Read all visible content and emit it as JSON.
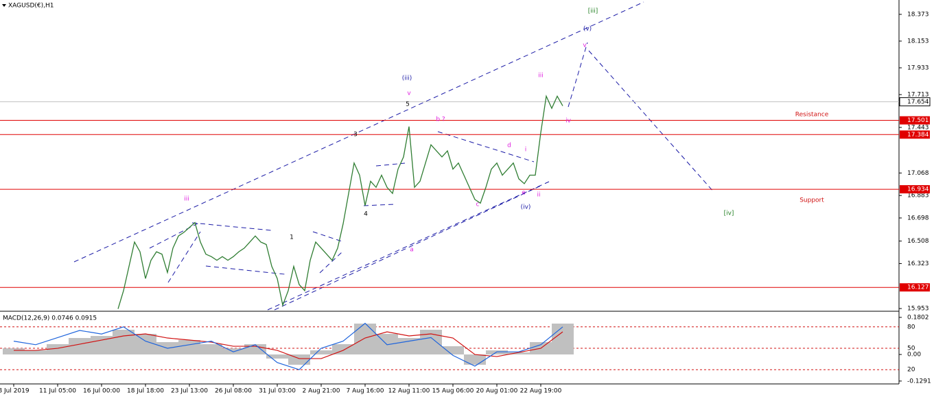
{
  "chart_data": [
    {
      "type": "line",
      "title": "XAGUSD(€),H1",
      "x": [
        19,
        20,
        21,
        22,
        23,
        24,
        25,
        26,
        27,
        28,
        29,
        30,
        31,
        32,
        33,
        34,
        35,
        36,
        37,
        38,
        39,
        40,
        41,
        42,
        43,
        44,
        45,
        46,
        47,
        48,
        49,
        50,
        51,
        52,
        53,
        54,
        55,
        56,
        57,
        58,
        59,
        60,
        61,
        62,
        63,
        64,
        65,
        66,
        67,
        68,
        69,
        70,
        71,
        72,
        73,
        74,
        75,
        76,
        77,
        78,
        79,
        80,
        81,
        82,
        83,
        84,
        85,
        86,
        87,
        88,
        89,
        90,
        91,
        92,
        93,
        94,
        95,
        96,
        97,
        98,
        99,
        100
      ],
      "series": [
        {
          "name": "XAGUSD",
          "color": "#2f7d32",
          "values": [
            15.95,
            16.1,
            16.3,
            16.5,
            16.42,
            16.2,
            16.35,
            16.42,
            16.4,
            16.25,
            16.45,
            16.55,
            16.58,
            16.62,
            16.66,
            16.5,
            16.4,
            16.38,
            16.35,
            16.38,
            16.35,
            16.38,
            16.42,
            16.45,
            16.5,
            16.55,
            16.5,
            16.48,
            16.3,
            16.2,
            15.98,
            16.1,
            16.3,
            16.15,
            16.1,
            16.35,
            16.5,
            16.45,
            16.4,
            16.35,
            16.45,
            16.65,
            16.9,
            17.15,
            17.05,
            16.8,
            17.0,
            16.95,
            17.05,
            16.95,
            16.9,
            17.1,
            17.2,
            17.45,
            16.95,
            17.0,
            17.15,
            17.3,
            17.25,
            17.2,
            17.25,
            17.1,
            17.15,
            17.05,
            16.95,
            16.85,
            16.82,
            16.95,
            17.1,
            17.15,
            17.05,
            17.1,
            17.15,
            17.02,
            16.98,
            17.05,
            17.05,
            17.4,
            17.7,
            17.6,
            17.7,
            17.62
          ]
        }
      ],
      "xlim": [
        -2.5,
        161.25
      ],
      "xticks": [
        {
          "value": 0,
          "label": "8 Jul 2019"
        },
        {
          "value": 8,
          "label": "11 Jul 05:00"
        },
        {
          "value": 16,
          "label": "16 Jul 00:00"
        },
        {
          "value": 24,
          "label": "18 Jul 18:00"
        },
        {
          "value": 32,
          "label": "23 Jul 13:00"
        },
        {
          "value": 40,
          "label": "26 Jul 08:00"
        },
        {
          "value": 48,
          "label": "31 Jul 03:00"
        },
        {
          "value": 56,
          "label": "2 Aug 21:00"
        },
        {
          "value": 64,
          "label": "7 Aug 16:00"
        },
        {
          "value": 72,
          "label": "12 Aug 11:00"
        },
        {
          "value": 80,
          "label": "15 Aug 06:00"
        },
        {
          "value": 88,
          "label": "20 Aug 01:00"
        },
        {
          "value": 96,
          "label": "22 Aug 19:00"
        }
      ],
      "ylim": [
        15.942,
        18.491
      ],
      "yticks": [
        18.373,
        18.153,
        17.933,
        17.713,
        17.443,
        17.068,
        16.883,
        16.698,
        16.508,
        16.323,
        15.953
      ],
      "levels": [
        17.501,
        17.384,
        16.934,
        16.127
      ],
      "level_color": "#e00000",
      "current_price": 17.654,
      "annotations": [
        {
          "text": "[iii]",
          "color": "#1e7d1e"
        },
        {
          "text": "(v)",
          "color": "#1a1aa6"
        },
        {
          "text": "v",
          "color": "#e020e0"
        },
        {
          "text": "(iii)",
          "color": "#1a1aa6"
        },
        {
          "text": "v",
          "color": "#e020e0"
        },
        {
          "text": "5",
          "color": "#000000"
        },
        {
          "text": "iii",
          "color": "#e020e0"
        },
        {
          "text": "b ?",
          "color": "#e020e0"
        },
        {
          "text": "iv",
          "color": "#e020e0"
        },
        {
          "text": "3",
          "color": "#000000"
        },
        {
          "text": "d",
          "color": "#e020e0"
        },
        {
          "text": "i",
          "color": "#e020e0"
        },
        {
          "text": "ii",
          "color": "#e020e0"
        },
        {
          "text": "e",
          "color": "#e020e0"
        },
        {
          "text": "(iv)",
          "color": "#1a1aa6"
        },
        {
          "text": "c",
          "color": "#e020e0"
        },
        {
          "text": "4",
          "color": "#000000"
        },
        {
          "text": "a",
          "color": "#e020e0"
        },
        {
          "text": "iii",
          "color": "#e020e0"
        },
        {
          "text": "1",
          "color": "#000000"
        },
        {
          "text": "[iv]",
          "color": "#1e7d1e"
        },
        {
          "text": "Resistance",
          "color": "#d01010"
        },
        {
          "text": "Support",
          "color": "#d01010"
        }
      ]
    },
    {
      "type": "macd",
      "title": "MACD(12,26,9) 0.0746 0.0915",
      "x": [
        0,
        4,
        8,
        12,
        16,
        20,
        24,
        28,
        32,
        36,
        40,
        44,
        48,
        52,
        56,
        60,
        64,
        68,
        72,
        76,
        80,
        84,
        88,
        92,
        96,
        100
      ],
      "xlim": [
        -2.5,
        161.25
      ],
      "series": [
        {
          "name": "MACD",
          "color": "#c0c0c0",
          "values": [
            0.03,
            0.02,
            0.05,
            0.08,
            0.09,
            0.12,
            0.1,
            0.06,
            0.07,
            0.05,
            0.03,
            0.05,
            -0.02,
            -0.05,
            0.02,
            0.05,
            0.15,
            0.1,
            0.08,
            0.12,
            0.04,
            -0.05,
            0.02,
            0.01,
            0.06,
            0.15
          ]
        },
        {
          "name": "Signal",
          "color": "#d01010",
          "values": [
            0.02,
            0.02,
            0.03,
            0.05,
            0.07,
            0.09,
            0.1,
            0.08,
            0.07,
            0.06,
            0.04,
            0.04,
            0.02,
            -0.02,
            -0.02,
            0.02,
            0.08,
            0.11,
            0.09,
            0.1,
            0.08,
            0.0,
            -0.01,
            0.01,
            0.03,
            0.11
          ]
        },
        {
          "name": "Oscillator",
          "color": "#1e64dc",
          "axis": "y2",
          "values": [
            60,
            55,
            65,
            75,
            70,
            80,
            60,
            50,
            55,
            60,
            45,
            55,
            30,
            20,
            50,
            60,
            85,
            55,
            60,
            65,
            40,
            25,
            45,
            45,
            55,
            80
          ]
        }
      ],
      "ylim": [
        -0.143,
        0.2033
      ],
      "yticks": [
        0.1802,
        {
          "value": 0,
          "label": "0.00"
        },
        -0.1291
      ],
      "y2lim": [
        0,
        100
      ],
      "y2ticks": [
        80,
        50,
        20
      ]
    }
  ]
}
